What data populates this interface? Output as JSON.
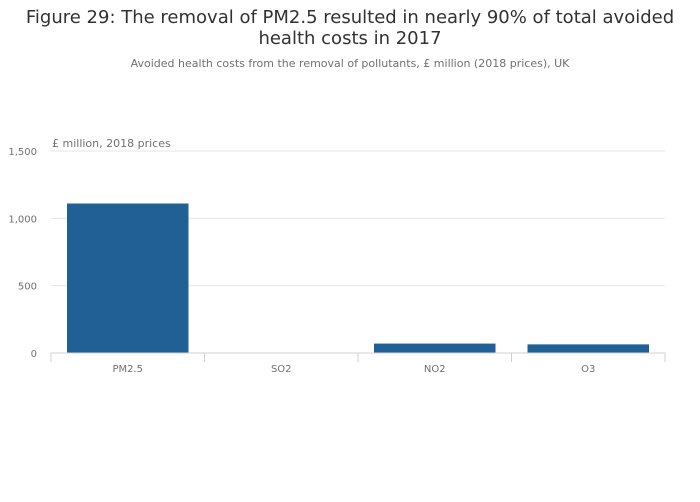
{
  "chart_data": {
    "type": "bar",
    "title": "Figure 29: The removal of PM2.5 resulted in nearly 90% of total avoided health costs in 2017",
    "subtitle": "Avoided health costs from the removal of pollutants, £ million (2018 prices), UK",
    "ylabel": "£ million, 2018 prices",
    "xlabel": "",
    "categories": [
      "PM2.5",
      "SO2",
      "NO2",
      "O3"
    ],
    "values": [
      1110,
      1,
      70,
      64
    ],
    "ylim": [
      0,
      1500
    ],
    "yticks": [
      0,
      500,
      1000,
      1500
    ],
    "ytick_labels": [
      "0",
      "500",
      "1,000",
      "1,500"
    ],
    "grid": true,
    "legend": "none",
    "bar_color": "#206095",
    "grid_color": "#e6e6e6",
    "axis_color": "#d0d0d0"
  }
}
